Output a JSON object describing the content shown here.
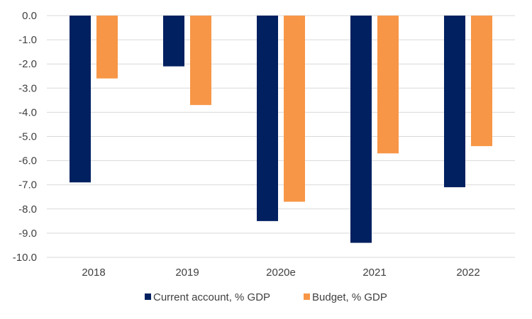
{
  "chart_data": {
    "type": "bar",
    "categories": [
      "2018",
      "2019",
      "2020e",
      "2021",
      "2022"
    ],
    "series": [
      {
        "name": "Current account, % GDP",
        "values": [
          -6.9,
          -2.1,
          -8.5,
          -9.4,
          -7.1
        ],
        "color": "#002060"
      },
      {
        "name": "Budget, % GDP",
        "values": [
          -2.6,
          -3.7,
          -7.7,
          -5.7,
          -5.4
        ],
        "color": "#F79646"
      }
    ],
    "ylim": [
      -10.0,
      0.0
    ],
    "yticks": [
      "0.0",
      "-1.0",
      "-2.0",
      "-3.0",
      "-4.0",
      "-5.0",
      "-6.0",
      "-7.0",
      "-8.0",
      "-9.0",
      "-10.0"
    ],
    "grid": true,
    "legend": "bottom"
  }
}
